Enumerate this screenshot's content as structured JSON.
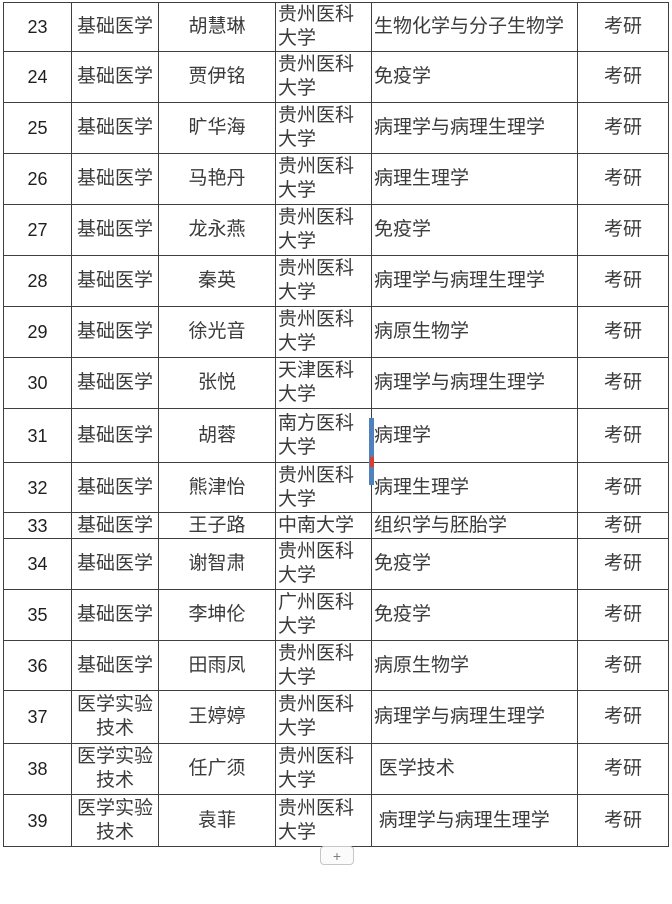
{
  "table": {
    "rows": [
      [
        "23",
        "基础医学",
        "胡慧琳",
        "贵州医科大学",
        "生物化学与分子生物学",
        "考研"
      ],
      [
        "24",
        "基础医学",
        "贾伊铭",
        "贵州医科大学",
        "免疫学",
        "考研"
      ],
      [
        "25",
        "基础医学",
        "旷华海",
        "贵州医科大学",
        "病理学与病理生理学",
        "考研"
      ],
      [
        "26",
        "基础医学",
        "马艳丹",
        "贵州医科大学",
        "病理生理学",
        "考研"
      ],
      [
        "27",
        "基础医学",
        "龙永燕",
        "贵州医科大学",
        "免疫学",
        "考研"
      ],
      [
        "28",
        "基础医学",
        "秦英",
        "贵州医科大学",
        "病理学与病理生理学",
        "考研"
      ],
      [
        "29",
        "基础医学",
        "徐光音",
        "贵州医科大学",
        "病原生物学",
        "考研"
      ],
      [
        "30",
        "基础医学",
        "张悦",
        "天津医科大学",
        "病理学与病理生理学",
        "考研"
      ],
      [
        "31",
        "基础医学",
        "胡蓉",
        "南方医科大学",
        "病理学",
        "考研"
      ],
      [
        "32",
        "基础医学",
        "熊津怡",
        "贵州医科大学",
        "病理生理学",
        "考研"
      ],
      [
        "33",
        "基础医学",
        "王子路",
        "中南大学",
        "组织学与胚胎学",
        "考研"
      ],
      [
        "34",
        "基础医学",
        "谢智肃",
        "贵州医科大学",
        "免疫学",
        "考研"
      ],
      [
        "35",
        "基础医学",
        "李坤伦",
        "广州医科大学",
        "免疫学",
        "考研"
      ],
      [
        "36",
        "基础医学",
        "田雨凤",
        "贵州医科大学",
        "病原生物学",
        "考研"
      ],
      [
        "37",
        "医学实验技术",
        "王婷婷",
        "贵州医科大学",
        "病理学与病理生理学",
        "考研"
      ],
      [
        "38",
        "医学实验技术",
        "任广须",
        "贵州医科大学",
        " 医学技术",
        "考研"
      ],
      [
        "39",
        "医学实验技术",
        "袁菲",
        "贵州医科大学",
        " 病理学与病理生理学",
        "考研"
      ]
    ]
  },
  "cursor": {
    "bar_color": "#4f81bd",
    "accent_color": "#e23b2e"
  },
  "add_button": {
    "label": "+"
  }
}
